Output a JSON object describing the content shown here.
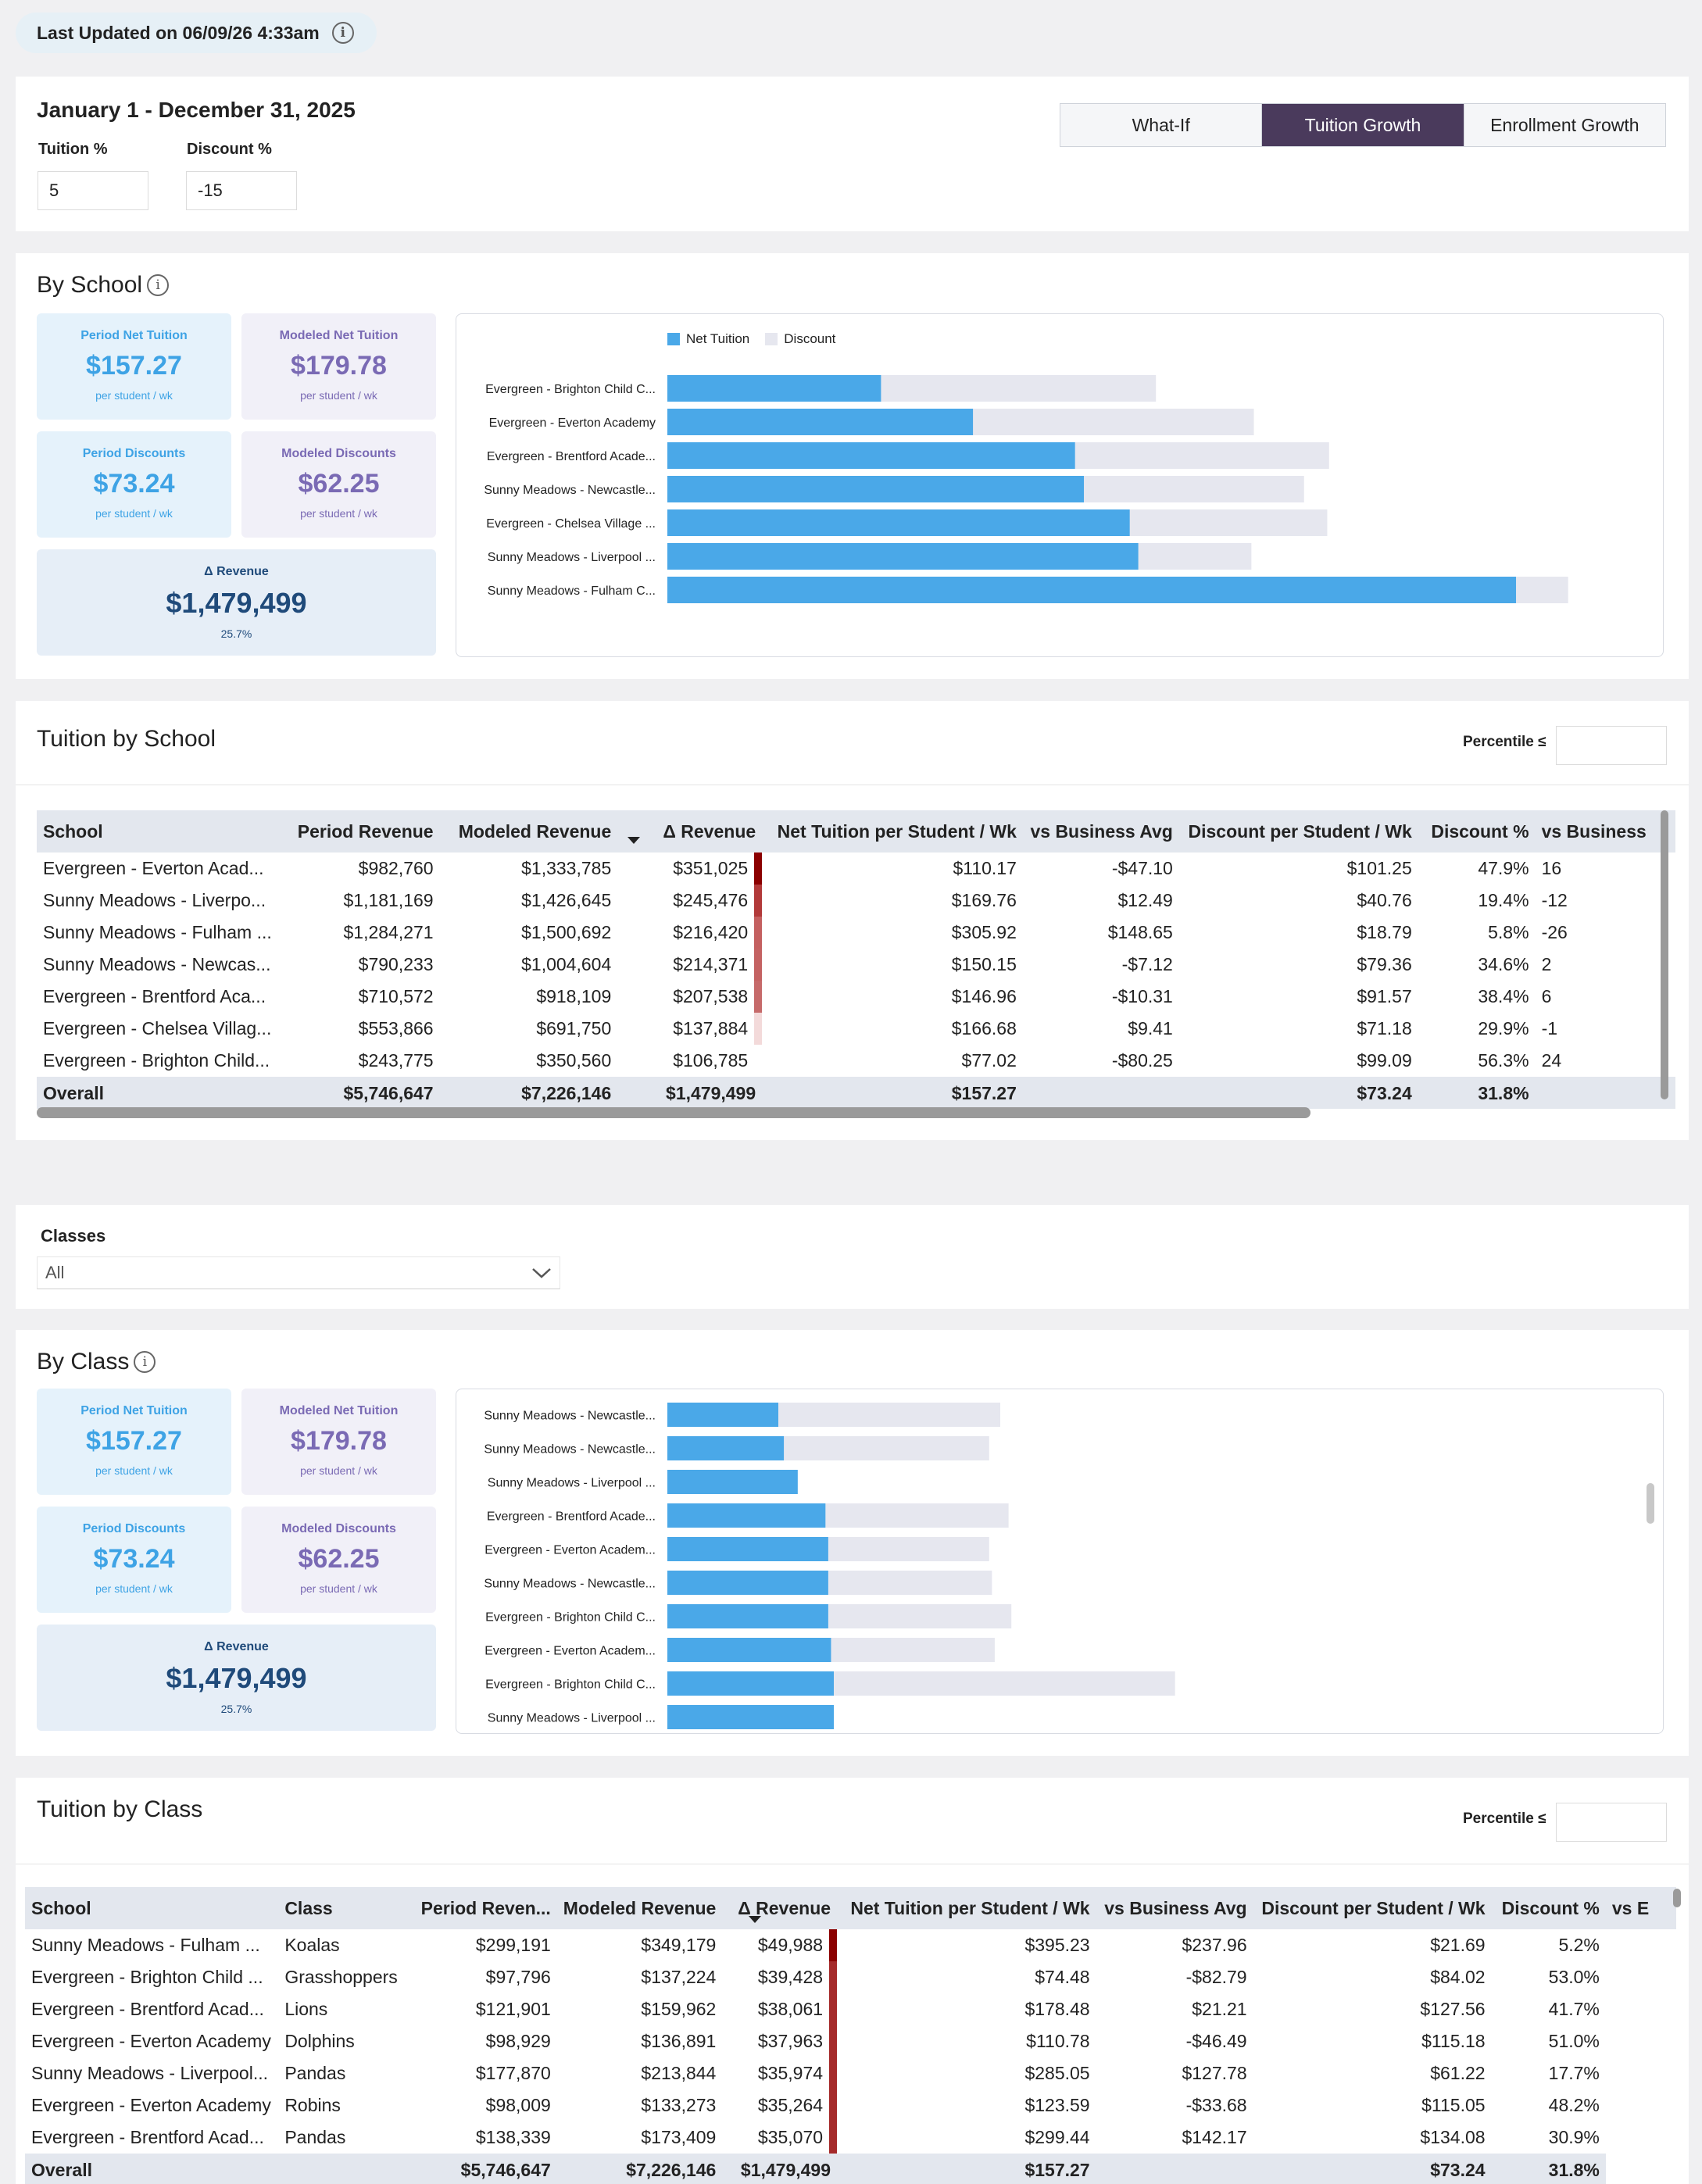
{
  "header": {
    "last_updated": "Last Updated on 06/09/26 4:33am",
    "info_glyph": "i"
  },
  "period": {
    "title": "January 1 - December 31, 2025",
    "tuition_label": "Tuition %",
    "tuition_value": "5",
    "discount_label": "Discount %",
    "discount_value": "-15",
    "tabs": [
      {
        "label": "What-If",
        "active": false
      },
      {
        "label": "Tuition Growth",
        "active": true
      },
      {
        "label": "Enrollment Growth",
        "active": false
      }
    ]
  },
  "colors": {
    "net_tuition": "#4aa8e8",
    "discount": "#e6e7ef",
    "active_tab": "#4a3a5c",
    "heat_dark": "#8b0000"
  },
  "kpis": {
    "period_net_label": "Period Net Tuition",
    "period_net_value": "$157.27",
    "modeled_net_label": "Modeled Net Tuition",
    "modeled_net_value": "$179.78",
    "per_student": "per student / wk",
    "period_disc_label": "Period Discounts",
    "period_disc_value": "$73.24",
    "modeled_disc_label": "Modeled Discounts",
    "modeled_disc_value": "$62.25",
    "delta_label": "Δ Revenue",
    "delta_value": "$1,479,499",
    "delta_pct": "25.7%"
  },
  "by_school": {
    "title": "By School",
    "legend": [
      "Net Tuition",
      "Discount"
    ]
  },
  "chart_data": [
    {
      "type": "bar",
      "orientation": "horizontal",
      "stacked": true,
      "categories": [
        "Evergreen - Brighton Child C...",
        "Evergreen - Everton Academy",
        "Evergreen - Brentford Acade...",
        "Sunny Meadows - Newcastle...",
        "Evergreen - Chelsea Village ...",
        "Sunny Meadows - Liverpool ...",
        "Sunny Meadows - Fulham C..."
      ],
      "series": [
        {
          "name": "Net Tuition",
          "values": [
            77.02,
            110.17,
            146.96,
            150.15,
            166.68,
            169.76,
            305.92
          ]
        },
        {
          "name": "Discount",
          "values": [
            99.09,
            101.25,
            91.57,
            79.36,
            71.18,
            40.76,
            18.79
          ]
        }
      ],
      "legend": "top-left",
      "grid": false
    },
    {
      "type": "bar",
      "orientation": "horizontal",
      "stacked": true,
      "categories": [
        "Sunny Meadows - Newcastle...",
        "Sunny Meadows - Newcastle...",
        "Sunny Meadows - Liverpool ...",
        "Evergreen - Brentford Acade...",
        "Evergreen - Everton Academ...",
        "Sunny Meadows - Newcastle...",
        "Evergreen - Brighton Child C...",
        "Evergreen - Everton Academ...",
        "Evergreen - Brighton Child C...",
        "Sunny Meadows - Liverpool ..."
      ],
      "series": [
        {
          "name": "Net Tuition",
          "values": [
            40,
            42,
            47,
            57,
            58,
            58,
            58,
            59,
            60,
            60
          ]
        },
        {
          "name": "Discount",
          "values": [
            80,
            74,
            0,
            66,
            58,
            59,
            66,
            59,
            123,
            0
          ]
        }
      ],
      "legend": "none",
      "grid": false
    }
  ],
  "tuition_by_school": {
    "title": "Tuition by School",
    "percentile_label": "Percentile ≤",
    "columns": [
      "School",
      "Period Revenue",
      "Modeled Revenue",
      "Δ Revenue",
      "Net Tuition per Student / Wk",
      "vs Business Avg",
      "Discount per Student / Wk",
      "Discount %",
      "vs Business"
    ],
    "rows": [
      [
        "Evergreen - Everton Acad...",
        "$982,760",
        "$1,333,785",
        "$351,025",
        "$110.17",
        "-$47.10",
        "$101.25",
        "47.9%",
        "16"
      ],
      [
        "Sunny Meadows - Liverpo...",
        "$1,181,169",
        "$1,426,645",
        "$245,476",
        "$169.76",
        "$12.49",
        "$40.76",
        "19.4%",
        "-12"
      ],
      [
        "Sunny Meadows - Fulham ...",
        "$1,284,271",
        "$1,500,692",
        "$216,420",
        "$305.92",
        "$148.65",
        "$18.79",
        "5.8%",
        "-26"
      ],
      [
        "Sunny Meadows - Newcas...",
        "$790,233",
        "$1,004,604",
        "$214,371",
        "$150.15",
        "-$7.12",
        "$79.36",
        "34.6%",
        "2"
      ],
      [
        "Evergreen - Brentford Aca...",
        "$710,572",
        "$918,109",
        "$207,538",
        "$146.96",
        "-$10.31",
        "$91.57",
        "38.4%",
        "6"
      ],
      [
        "Evergreen - Chelsea Villag...",
        "$553,866",
        "$691,750",
        "$137,884",
        "$166.68",
        "$9.41",
        "$71.18",
        "29.9%",
        "-1"
      ],
      [
        "Evergreen - Brighton Child...",
        "$243,775",
        "$350,560",
        "$106,785",
        "$77.02",
        "-$80.25",
        "$99.09",
        "56.3%",
        "24"
      ]
    ],
    "heat": [
      "#8b0000",
      "#b23a3a",
      "#c46060",
      "#c46262",
      "#c66a6a",
      "#f3dada",
      "#ffffff"
    ],
    "total": [
      "Overall",
      "$5,746,647",
      "$7,226,146",
      "$1,479,499",
      "$157.27",
      "",
      "$73.24",
      "31.8%",
      ""
    ]
  },
  "classes_filter": {
    "label": "Classes",
    "value": "All"
  },
  "by_class": {
    "title": "By Class"
  },
  "tuition_by_class": {
    "title": "Tuition by Class",
    "percentile_label": "Percentile ≤",
    "columns": [
      "School",
      "Class",
      "Period Reven...",
      "Modeled Revenue",
      "Δ Revenue",
      "Net Tuition per Student / Wk",
      "vs Business Avg",
      "Discount per Student / Wk",
      "Discount %",
      "vs E"
    ],
    "rows": [
      [
        "Sunny Meadows - Fulham ...",
        "Koalas",
        "$299,191",
        "$349,179",
        "$49,988",
        "$395.23",
        "$237.96",
        "$21.69",
        "5.2%"
      ],
      [
        "Evergreen - Brighton Child ...",
        "Grasshoppers",
        "$97,796",
        "$137,224",
        "$39,428",
        "$74.48",
        "-$82.79",
        "$84.02",
        "53.0%"
      ],
      [
        "Evergreen - Brentford Acad...",
        "Lions",
        "$121,901",
        "$159,962",
        "$38,061",
        "$178.48",
        "$21.21",
        "$127.56",
        "41.7%"
      ],
      [
        "Evergreen - Everton Academy",
        "Dolphins",
        "$98,929",
        "$136,891",
        "$37,963",
        "$110.78",
        "-$46.49",
        "$115.18",
        "51.0%"
      ],
      [
        "Sunny Meadows - Liverpool...",
        "Pandas",
        "$177,870",
        "$213,844",
        "$35,974",
        "$285.05",
        "$127.78",
        "$61.22",
        "17.7%"
      ],
      [
        "Evergreen - Everton Academy",
        "Robins",
        "$98,009",
        "$133,273",
        "$35,264",
        "$123.59",
        "-$33.68",
        "$115.05",
        "48.2%"
      ],
      [
        "Evergreen - Brentford Acad...",
        "Pandas",
        "$138,339",
        "$173,409",
        "$35,070",
        "$299.44",
        "$142.17",
        "$134.08",
        "30.9%"
      ]
    ],
    "heat": [
      "#8b0000",
      "#a52a2a",
      "#a52a2a",
      "#a52a2a",
      "#a52a2a",
      "#a52a2a",
      "#a52a2a"
    ],
    "total": [
      "Overall",
      "",
      "$5,746,647",
      "$7,226,146",
      "$1,479,499",
      "$157.27",
      "",
      "$73.24",
      "31.8%"
    ]
  }
}
